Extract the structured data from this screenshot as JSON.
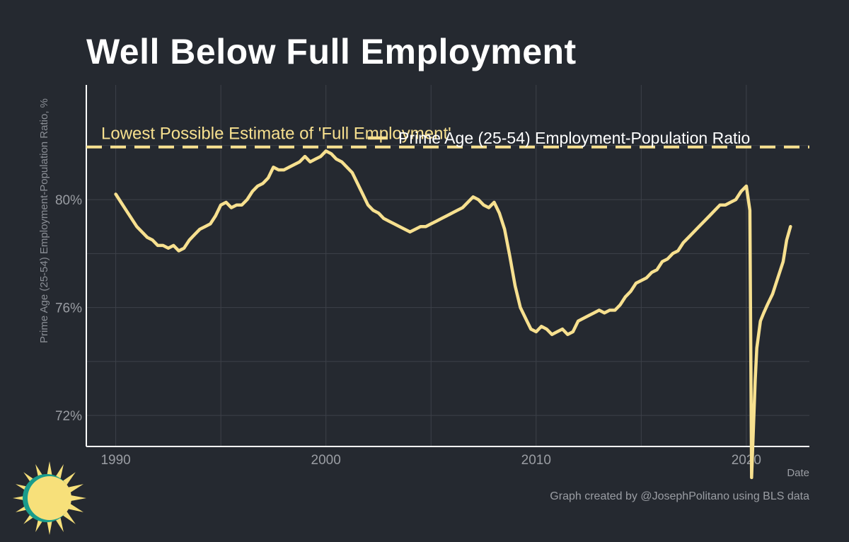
{
  "title": "Well Below Full Employment",
  "credit": "Graph created by @JosephPolitano using BLS data",
  "colors": {
    "background": "#252930",
    "series": "#f7e08f",
    "grid": "#3d4149",
    "axis": "#ffffff",
    "tick_text": "#9a9da3",
    "annotation": "#f7e08f",
    "logo_sun": "#f7e07a",
    "logo_ring": "#1a9c8c"
  },
  "logo": {
    "icon": "sun-icon"
  },
  "chart_data": {
    "type": "line",
    "xlabel": "Date",
    "ylabel": "Prime Age (25-54) Employment-Population Ratio, %",
    "xlim": [
      1988.6,
      2023.0
    ],
    "ylim": [
      70.85,
      84.25
    ],
    "x_ticks": [
      1990,
      2000,
      2010,
      2020
    ],
    "x_tick_labels": [
      "1990",
      "2000",
      "2010",
      "2020"
    ],
    "y_ticks": [
      72,
      76,
      80
    ],
    "y_tick_labels": [
      "72%",
      "76%",
      "80%"
    ],
    "grid": true,
    "legend_position": "top-right",
    "reference_line": {
      "y": 81.95,
      "style": "dashed",
      "label": "Lowest Possible Estimate of 'Full Employment'"
    },
    "series": [
      {
        "name": "Prime Age (25-54) Employment-Population Ratio",
        "points": [
          [
            1990.0,
            80.2
          ],
          [
            1990.25,
            79.9
          ],
          [
            1990.5,
            79.6
          ],
          [
            1990.75,
            79.3
          ],
          [
            1991.0,
            79.0
          ],
          [
            1991.25,
            78.8
          ],
          [
            1991.5,
            78.6
          ],
          [
            1991.75,
            78.5
          ],
          [
            1992.0,
            78.3
          ],
          [
            1992.25,
            78.3
          ],
          [
            1992.5,
            78.2
          ],
          [
            1992.75,
            78.3
          ],
          [
            1993.0,
            78.1
          ],
          [
            1993.25,
            78.2
          ],
          [
            1993.5,
            78.5
          ],
          [
            1993.75,
            78.7
          ],
          [
            1994.0,
            78.9
          ],
          [
            1994.25,
            79.0
          ],
          [
            1994.5,
            79.1
          ],
          [
            1994.75,
            79.4
          ],
          [
            1995.0,
            79.8
          ],
          [
            1995.25,
            79.9
          ],
          [
            1995.5,
            79.7
          ],
          [
            1995.75,
            79.8
          ],
          [
            1996.0,
            79.8
          ],
          [
            1996.25,
            80.0
          ],
          [
            1996.5,
            80.3
          ],
          [
            1996.75,
            80.5
          ],
          [
            1997.0,
            80.6
          ],
          [
            1997.25,
            80.8
          ],
          [
            1997.5,
            81.2
          ],
          [
            1997.75,
            81.1
          ],
          [
            1998.0,
            81.1
          ],
          [
            1998.25,
            81.2
          ],
          [
            1998.5,
            81.3
          ],
          [
            1998.75,
            81.4
          ],
          [
            1999.0,
            81.6
          ],
          [
            1999.25,
            81.4
          ],
          [
            1999.5,
            81.5
          ],
          [
            1999.75,
            81.6
          ],
          [
            2000.0,
            81.8
          ],
          [
            2000.25,
            81.7
          ],
          [
            2000.5,
            81.5
          ],
          [
            2000.75,
            81.4
          ],
          [
            2001.0,
            81.2
          ],
          [
            2001.25,
            81.0
          ],
          [
            2001.5,
            80.6
          ],
          [
            2001.75,
            80.2
          ],
          [
            2002.0,
            79.8
          ],
          [
            2002.25,
            79.6
          ],
          [
            2002.5,
            79.5
          ],
          [
            2002.75,
            79.3
          ],
          [
            2003.0,
            79.2
          ],
          [
            2003.25,
            79.1
          ],
          [
            2003.5,
            79.0
          ],
          [
            2003.75,
            78.9
          ],
          [
            2004.0,
            78.8
          ],
          [
            2004.25,
            78.9
          ],
          [
            2004.5,
            79.0
          ],
          [
            2004.75,
            79.0
          ],
          [
            2005.0,
            79.1
          ],
          [
            2005.25,
            79.2
          ],
          [
            2005.5,
            79.3
          ],
          [
            2005.75,
            79.4
          ],
          [
            2006.0,
            79.5
          ],
          [
            2006.25,
            79.6
          ],
          [
            2006.5,
            79.7
          ],
          [
            2006.75,
            79.9
          ],
          [
            2007.0,
            80.1
          ],
          [
            2007.25,
            80.0
          ],
          [
            2007.5,
            79.8
          ],
          [
            2007.75,
            79.7
          ],
          [
            2008.0,
            79.9
          ],
          [
            2008.25,
            79.5
          ],
          [
            2008.5,
            78.9
          ],
          [
            2008.75,
            77.9
          ],
          [
            2009.0,
            76.8
          ],
          [
            2009.25,
            76.0
          ],
          [
            2009.5,
            75.6
          ],
          [
            2009.75,
            75.2
          ],
          [
            2010.0,
            75.1
          ],
          [
            2010.25,
            75.3
          ],
          [
            2010.5,
            75.2
          ],
          [
            2010.75,
            75.0
          ],
          [
            2011.0,
            75.1
          ],
          [
            2011.25,
            75.2
          ],
          [
            2011.5,
            75.0
          ],
          [
            2011.75,
            75.1
          ],
          [
            2012.0,
            75.5
          ],
          [
            2012.25,
            75.6
          ],
          [
            2012.5,
            75.7
          ],
          [
            2012.75,
            75.8
          ],
          [
            2013.0,
            75.9
          ],
          [
            2013.25,
            75.8
          ],
          [
            2013.5,
            75.9
          ],
          [
            2013.75,
            75.9
          ],
          [
            2014.0,
            76.1
          ],
          [
            2014.25,
            76.4
          ],
          [
            2014.5,
            76.6
          ],
          [
            2014.75,
            76.9
          ],
          [
            2015.0,
            77.0
          ],
          [
            2015.25,
            77.1
          ],
          [
            2015.5,
            77.3
          ],
          [
            2015.75,
            77.4
          ],
          [
            2016.0,
            77.7
          ],
          [
            2016.25,
            77.8
          ],
          [
            2016.5,
            78.0
          ],
          [
            2016.75,
            78.1
          ],
          [
            2017.0,
            78.4
          ],
          [
            2017.25,
            78.6
          ],
          [
            2017.5,
            78.8
          ],
          [
            2017.75,
            79.0
          ],
          [
            2018.0,
            79.2
          ],
          [
            2018.25,
            79.4
          ],
          [
            2018.5,
            79.6
          ],
          [
            2018.75,
            79.8
          ],
          [
            2019.0,
            79.8
          ],
          [
            2019.25,
            79.9
          ],
          [
            2019.5,
            80.0
          ],
          [
            2019.75,
            80.3
          ],
          [
            2020.0,
            80.5
          ],
          [
            2020.17,
            79.6
          ],
          [
            2020.25,
            69.7
          ],
          [
            2020.42,
            73.3
          ],
          [
            2020.5,
            74.5
          ],
          [
            2020.67,
            75.5
          ],
          [
            2020.83,
            75.8
          ],
          [
            2021.0,
            76.1
          ],
          [
            2021.25,
            76.5
          ],
          [
            2021.5,
            77.1
          ],
          [
            2021.75,
            77.7
          ],
          [
            2021.92,
            78.5
          ],
          [
            2022.1,
            79.0
          ]
        ]
      }
    ]
  }
}
